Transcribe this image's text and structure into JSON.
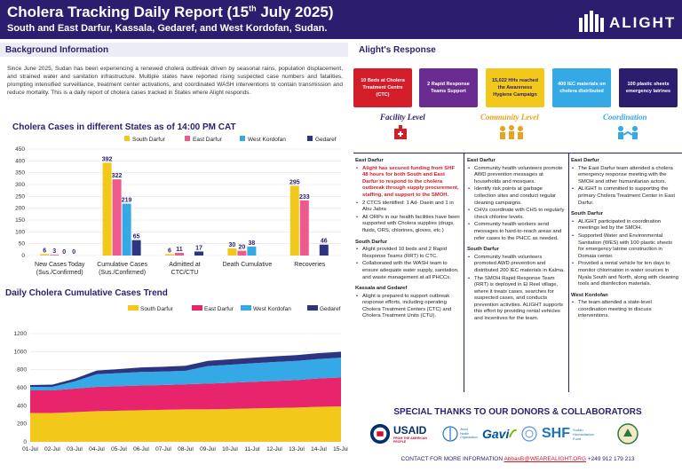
{
  "header": {
    "title": "Cholera Tracking Daily Report (15",
    "title_sup": "th",
    "title_end": " July 2025)",
    "subtitle": "South and East Darfur, Kassala, Gedaref, and West Kordofan, Sudan.",
    "logo": "ALIGHT"
  },
  "background": {
    "heading": "Background Information",
    "text": "Since June 2025, Sudan has been experiencing a renewed cholera outbreak driven by seasonal rains, population displacement, and strained water and sanitation infrastructure. Multiple states have reported rising suspected case numbers and fatalities, prompting intensified surveillance, treatment center activations, and coordinated WASH interventions to contain transmission and reduce mortality. This is a daily report of cholera cases tracked in States where Alight responds."
  },
  "chart_data": [
    {
      "type": "bar",
      "title": "Cholera Cases in different States as of 14:00 PM CAT",
      "categories": [
        "New Cases Today (Sus./Confirmed)",
        "Cumulative Cases (Sus./Confirmed)",
        "Admitted at CTC/CTU",
        "Death Cumulative",
        "Recoveries"
      ],
      "series": [
        {
          "name": "South Darfur",
          "color": "#f2c81a",
          "values": [
            6,
            392,
            6,
            30,
            295
          ]
        },
        {
          "name": "East Darfur",
          "color": "#ef5a8c",
          "values": [
            3,
            322,
            11,
            20,
            233
          ]
        },
        {
          "name": "West Kordofan",
          "color": "#35a9e6",
          "values": [
            0,
            219,
            0,
            38,
            0
          ]
        },
        {
          "name": "Gedaref",
          "color": "#2d3580",
          "values": [
            0,
            65,
            17,
            0,
            46
          ]
        }
      ],
      "visible_labels": [
        [
          "6",
          "3",
          "0",
          "0"
        ],
        [
          "392",
          "322",
          "219",
          "65"
        ],
        [
          "6",
          "11",
          "",
          "17"
        ],
        [
          "30",
          "20",
          "38",
          ""
        ],
        [
          "295",
          "233",
          "",
          "46"
        ]
      ],
      "ylim": [
        0,
        450
      ],
      "yticks": [
        "0",
        "50",
        "100",
        "150",
        "200",
        "250",
        "300",
        "350",
        "400",
        "450"
      ],
      "legend": "top"
    },
    {
      "type": "area",
      "title": "Daily Cholera Cumulative Cases Trend",
      "x": [
        "01-Jul",
        "02-Jul",
        "03-Jul",
        "04-Jul",
        "05-Jul",
        "06-Jul",
        "07-Jul",
        "08-Jul",
        "09-Jul",
        "10-Jul",
        "11-Jul",
        "12-Jul",
        "13-Jul",
        "14-Jul",
        "15-Jul"
      ],
      "series": [
        {
          "name": "South Darfur",
          "color": "#f2c81a",
          "values": [
            320,
            320,
            330,
            340,
            345,
            350,
            355,
            360,
            360,
            365,
            370,
            375,
            380,
            388,
            392
          ]
        },
        {
          "name": "East Darfur",
          "color": "#e8246c",
          "values": [
            250,
            250,
            260,
            270,
            272,
            275,
            275,
            278,
            285,
            290,
            295,
            300,
            305,
            315,
            322
          ]
        },
        {
          "name": "West Kordofan",
          "color": "#35a9e6",
          "values": [
            40,
            40,
            80,
            140,
            145,
            150,
            150,
            150,
            195,
            200,
            205,
            210,
            212,
            216,
            219
          ]
        },
        {
          "name": "Gedaref",
          "color": "#2d3580",
          "values": [
            20,
            25,
            30,
            40,
            45,
            50,
            52,
            55,
            58,
            60,
            62,
            63,
            64,
            64,
            65
          ]
        }
      ],
      "stacked": true,
      "ylim": [
        0,
        1200
      ],
      "yticks": [
        "0",
        "200",
        "400",
        "600",
        "800",
        "1000",
        "1200"
      ],
      "legend": "top"
    }
  ],
  "response": {
    "heading": "Alight's Response",
    "boxes": [
      {
        "label": "10 Beds at  Cholera Treatment Centre (CTC)",
        "color": "#d31e2a"
      },
      {
        "label": "2 Rapid Response Teams  Support",
        "color": "#6a2c91"
      },
      {
        "label": "15,022 HHs reached the Awareness Hygiene Campaign",
        "color": "#f2c81a"
      },
      {
        "label": "400 IEC materials on cholera distributed",
        "color": "#35a9e6"
      },
      {
        "label": "100 plastic sheets emergency latrines",
        "color": "#2d1d6e"
      }
    ],
    "levels": [
      {
        "label": "Facility Level",
        "color": "#2d1d6e"
      },
      {
        "label": "Community Level",
        "color": "#e8a21b"
      },
      {
        "label": "Coordination",
        "color": "#35a9e6"
      }
    ],
    "facility": [
      {
        "region": "East Darfur",
        "items": [
          {
            "text": "Alight has secured funding from SHF 48 hours for both South and East Darfur to respond to the cholera outbreak through supply procurement, staffing, and support to the SMOH.",
            "red": true
          },
          {
            "text": "2 CTCS identified: 1 Ad- Daein and 1 in Abu Jabra"
          },
          {
            "text": "All ORPs in our health facilities have been supported with Cholera supplies (drugs, fluids, ORS, chlorines, gloves, etc.)"
          }
        ]
      },
      {
        "region": "South Darfur",
        "items": [
          {
            "text": "Alight provided 10 beds and 2 Rapid Response Teams (RRT) to CTC."
          },
          {
            "text": "Collaborated with the WASH team to ensure adequate water supply, sanitation, and waste management at all PHCCs."
          }
        ]
      },
      {
        "region": "Kassala and Gedaref",
        "items": [
          {
            "text": "Alight is prepared to support outbreak response efforts, including operating Cholera Treatment Centers (CTC) and Cholera Treatment Units (CTU)."
          }
        ]
      }
    ],
    "community": [
      {
        "region": "East Darfur",
        "items": [
          {
            "text": "Community health volunteers promote AWD prevention messages at households and mosques."
          },
          {
            "text": "Identify risk points at garbage collection sites and conduct regular cleaning campaigns."
          },
          {
            "text": "CHVs coordinate with CHS to regularly check chlorine levels."
          },
          {
            "text": "Community health workers send messages to hard-to-reach areas and refer cases to the PHCC as needed."
          }
        ]
      },
      {
        "region": "South Darfur",
        "items": [
          {
            "text": "Community health volunteers promoted AWD prevention and distributed 200 IEC materials in Kalma."
          },
          {
            "text": "The SMOH Rapid Response Team (RRT) is deployed in El Reel village, where it treats cases, searches for suspected cases, and conducts prevention activities. ALIGHT supports this effort by providing rental vehicles and incentives for the team."
          }
        ]
      }
    ],
    "coordination": [
      {
        "region": "East Darfur",
        "items": [
          {
            "text": "The East Darfur team attended a cholera emergency response meeting with the SMOH and other humanitarian actors."
          },
          {
            "text": "ALIGHT is committed to supporting the primary Cholera Treatment Center in East Darfur."
          }
        ]
      },
      {
        "region": "South Darfur",
        "items": [
          {
            "text": "ALIGHT participated in coordination meetings led by the SMOH."
          },
          {
            "text": "Supported Water and Environmental Sanitation (WES) with 100 plastic sheets for emergency latrine construction in Domaia center."
          },
          {
            "text": "Provided a rental vehicle for ten days to monitor chlorination in water sources in Nyala South and North, along with cleaning tools and disinfection materials."
          }
        ]
      },
      {
        "region": "West Kordofan",
        "items": [
          {
            "text": "The team attended a state-level coordination meeting to discuss interventions."
          }
        ]
      }
    ]
  },
  "thanks": "SPECIAL THANKS TO OUR DONORS & COLLABORATORS",
  "donors": {
    "usaid": "USAID",
    "usaid_sub": "FROM THE AMERICAN PEOPLE",
    "who": "World Health Organization",
    "gavi": "Gavi",
    "shf": "SHF",
    "shf_sub": "Sudan Humanitarian Fund"
  },
  "contact": {
    "prefix": "CONTACT FOR MORE INFORMATION ",
    "email": "AbbasB@WEAREALIGHT.ORG",
    "phone": " +249 912 179 213"
  }
}
